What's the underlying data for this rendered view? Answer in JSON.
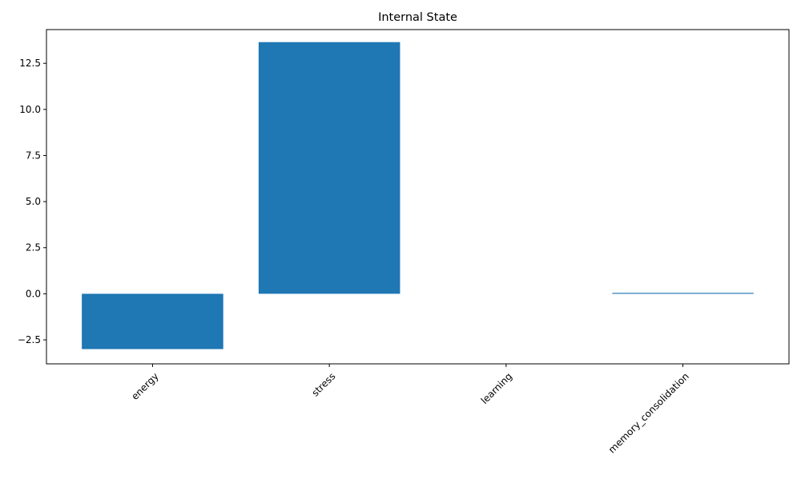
{
  "colors": {
    "bar": "#1f77b4",
    "axis": "#000000",
    "background": "#ffffff"
  },
  "chart_data": {
    "type": "bar",
    "title": "Internal State",
    "xlabel": "",
    "ylabel": "",
    "categories": [
      "energy",
      "stress",
      "learning",
      "memory_consolidation"
    ],
    "values": [
      -3.0,
      13.65,
      0.0,
      0.05
    ],
    "ylim": [
      -3.8,
      14.33
    ],
    "yticks": [
      -2.5,
      0.0,
      2.5,
      5.0,
      7.5,
      10.0,
      12.5
    ],
    "ytick_labels": [
      "−2.5",
      "0.0",
      "2.5",
      "5.0",
      "7.5",
      "10.0",
      "12.5"
    ],
    "xtick_rotation": 45,
    "grid": false,
    "legend": "none"
  }
}
